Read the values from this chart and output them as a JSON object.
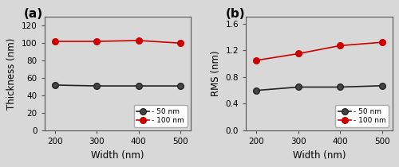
{
  "x": [
    200,
    300,
    400,
    500
  ],
  "thickness_50nm": [
    52,
    51,
    51,
    51
  ],
  "thickness_100nm": [
    102,
    102,
    103,
    100
  ],
  "rms_50nm": [
    0.6,
    0.65,
    0.65,
    0.67
  ],
  "rms_100nm": [
    1.05,
    1.15,
    1.27,
    1.32
  ],
  "color_50nm": "#222222",
  "color_100nm": "#cc0000",
  "marker": "o",
  "linewidth": 1.2,
  "markersize": 5.5,
  "markerfacecolor_50nm": "#444444",
  "markerfacecolor_100nm": "#cc0000",
  "label_50nm": "- 50 nm",
  "label_100nm": "- 100 nm",
  "xlabel": "Width (nm)",
  "ylabel_a": "Thickness (nm)",
  "ylabel_b": "RMS (nm)",
  "panel_a_label": "(a)",
  "panel_b_label": "(b)",
  "xlim": [
    175,
    525
  ],
  "ylim_a": [
    0,
    130
  ],
  "ylim_b": [
    0.0,
    1.7
  ],
  "yticks_a": [
    0,
    20,
    40,
    60,
    80,
    100,
    120
  ],
  "yticks_b": [
    0.0,
    0.4,
    0.8,
    1.2,
    1.6
  ],
  "xticks": [
    200,
    300,
    400,
    500
  ],
  "background_color": "#d8d8d8",
  "fig_background": "#d8d8d8",
  "legend_fontsize": 6.5,
  "axis_label_fontsize": 8.5,
  "tick_fontsize": 7.5,
  "panel_label_fontsize": 11
}
